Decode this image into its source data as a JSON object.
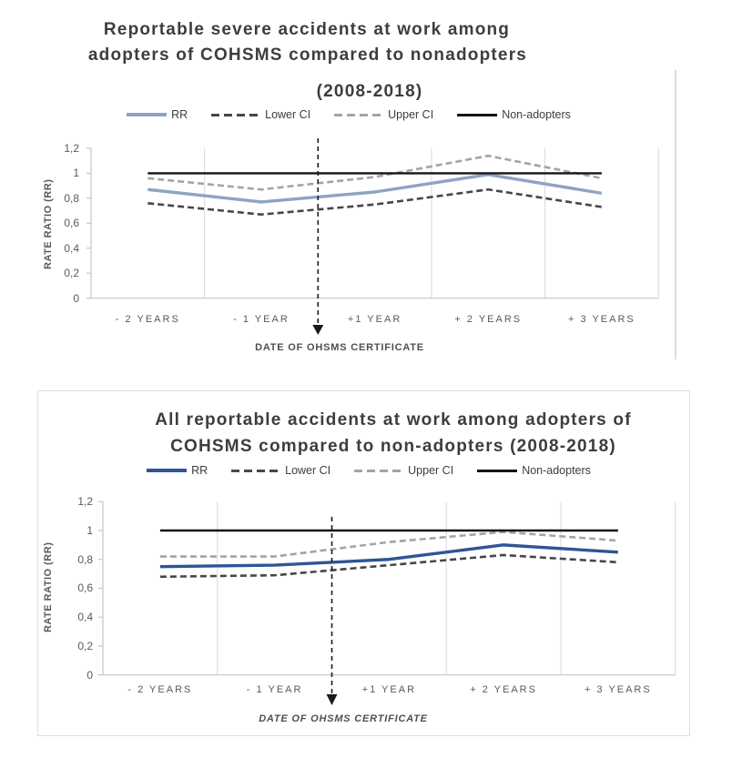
{
  "chart_data": [
    {
      "type": "line",
      "title": "Reportable severe accidents at work among adopters of COHSMS compared to nonadopters (2008-2018)",
      "title_lines": [
        "Reportable severe accidents at work among",
        "adopters of COHSMS compared to nonadopters",
        "(2008-2018)"
      ],
      "categories": [
        "- 2 YEARS",
        "- 1 YEAR",
        "+1 YEAR",
        "+ 2 YEARS",
        "+ 3 YEARS"
      ],
      "series": [
        {
          "name": "RR",
          "values": [
            0.87,
            0.77,
            0.85,
            0.99,
            0.84
          ],
          "color": "#8ea3c4",
          "dash": "solid"
        },
        {
          "name": "Lower CI",
          "values": [
            0.76,
            0.67,
            0.75,
            0.87,
            0.73
          ],
          "color": "#474747",
          "dash": "dashed"
        },
        {
          "name": "Upper CI",
          "values": [
            0.96,
            0.87,
            0.97,
            1.14,
            0.96
          ],
          "color": "#a4a4a4",
          "dash": "dashed"
        },
        {
          "name": "Non-adopters",
          "values": [
            1,
            1,
            1,
            1,
            1
          ],
          "color": "#141414",
          "dash": "solid"
        }
      ],
      "ylabel": "RATE RATIO (RR)",
      "xlabel": "DATE OF OHSMS CERTIFICATE",
      "ylim": [
        0,
        1.2
      ],
      "ytick_values": [
        0,
        0.2,
        0.4,
        0.6,
        0.8,
        1,
        1.2
      ],
      "ytick_labels": [
        "0",
        "0,2",
        "0,4",
        "0,6",
        "0,8",
        "1",
        "1,2"
      ],
      "grid": "vertical-only",
      "legend_position": "top",
      "annotation": {
        "label": "DATE OF OHSMS CERTIFICATE",
        "position": "between - 1 YEAR and +1 YEAR",
        "style": "dashed-down-arrow"
      }
    },
    {
      "type": "line",
      "title": "All reportable accidents at work among adopters of COHSMS compared to non-adopters (2008-2018)",
      "title_lines": [
        "All reportable accidents at work among adopters of",
        "COHSMS compared to non-adopters (2008-2018)"
      ],
      "categories": [
        "- 2 YEARS",
        "- 1 YEAR",
        "+1 YEAR",
        "+ 2 YEARS",
        "+ 3 YEARS"
      ],
      "series": [
        {
          "name": "RR",
          "values": [
            0.75,
            0.76,
            0.8,
            0.9,
            0.85
          ],
          "color": "#2e5596",
          "dash": "solid"
        },
        {
          "name": "Lower CI",
          "values": [
            0.68,
            0.69,
            0.76,
            0.83,
            0.78
          ],
          "color": "#474747",
          "dash": "dashed"
        },
        {
          "name": "Upper CI",
          "values": [
            0.82,
            0.82,
            0.92,
            0.99,
            0.93
          ],
          "color": "#a4a4a4",
          "dash": "dashed"
        },
        {
          "name": "Non-adopters",
          "values": [
            1,
            1,
            1,
            1,
            1
          ],
          "color": "#141414",
          "dash": "solid"
        }
      ],
      "ylabel": "RATE RATIO (RR)",
      "xlabel": "DATE OF OHSMS CERTIFICATE",
      "ylim": [
        0,
        1.2
      ],
      "ytick_values": [
        0,
        0.2,
        0.4,
        0.6,
        0.8,
        1,
        1.2
      ],
      "ytick_labels": [
        "0",
        "0,2",
        "0,4",
        "0,6",
        "0,8",
        "1",
        "1,2"
      ],
      "grid": "vertical-only",
      "legend_position": "top",
      "annotation": {
        "label": "DATE OF OHSMS CERTIFICATE",
        "position": "between - 1 YEAR and +1 YEAR",
        "style": "dashed-down-arrow"
      }
    }
  ]
}
